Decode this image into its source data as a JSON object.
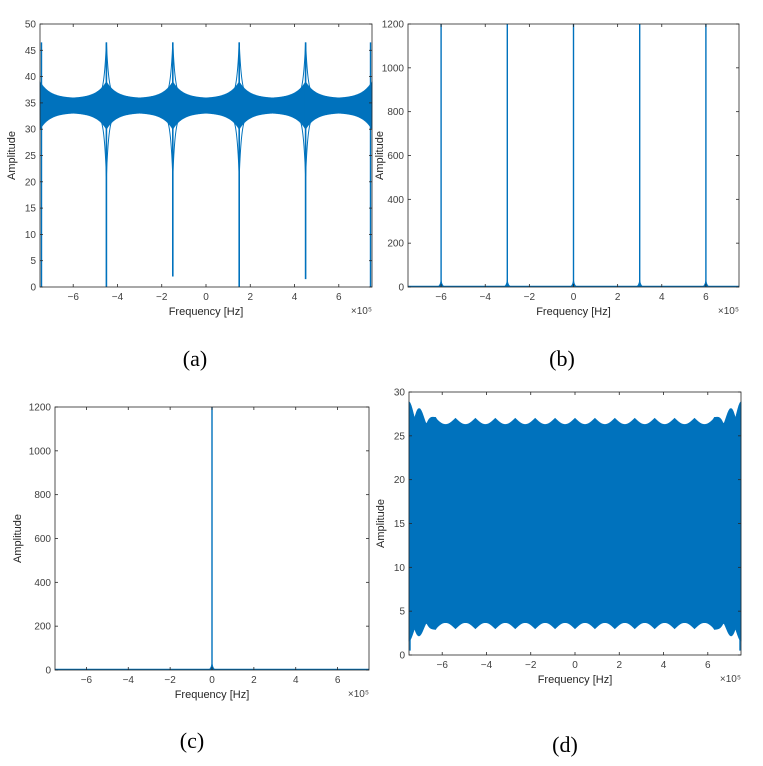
{
  "colors": {
    "line": "#0072BD",
    "axis": "#262626",
    "tick_text": "#404040"
  },
  "panel_captions": [
    "(a)",
    "(b)",
    "(c)",
    "(d)"
  ],
  "chart_data": [
    {
      "id": "a",
      "type": "line",
      "xlabel": "Frequency [Hz]",
      "ylabel": "Amplitude",
      "x_exponent": "×10⁵",
      "xlim": [
        -7.5,
        7.5
      ],
      "ylim": [
        0,
        50
      ],
      "xticks": [
        -6,
        -4,
        -2,
        0,
        2,
        4,
        6
      ],
      "yticks": [
        0,
        5,
        10,
        15,
        20,
        25,
        30,
        35,
        40,
        45,
        50
      ],
      "grid": false,
      "baseline": 34.5,
      "band": [
        33.2,
        36
      ],
      "peaks": [
        {
          "x": -4.5,
          "high": 46.5,
          "low": 0
        },
        {
          "x": -1.5,
          "high": 46.5,
          "low": 2
        },
        {
          "x": 1.5,
          "high": 46.5,
          "low": 0
        },
        {
          "x": 4.5,
          "high": 46.5,
          "low": 1.5
        }
      ],
      "edge_peaks": [
        -7.5,
        7.5
      ]
    },
    {
      "id": "b",
      "type": "line",
      "xlabel": "Frequency [Hz]",
      "ylabel": "Amplitude",
      "x_exponent": "×10⁵",
      "xlim": [
        -7.5,
        7.5
      ],
      "ylim": [
        0,
        1200
      ],
      "xticks": [
        -6,
        -4,
        -2,
        0,
        2,
        4,
        6
      ],
      "yticks": [
        0,
        200,
        400,
        600,
        800,
        1000,
        1200
      ],
      "grid": false,
      "spikes": [
        {
          "x": -6,
          "y": 1200
        },
        {
          "x": -3,
          "y": 1200
        },
        {
          "x": 0,
          "y": 1200
        },
        {
          "x": 3,
          "y": 1200
        },
        {
          "x": 6,
          "y": 1200
        }
      ]
    },
    {
      "id": "c",
      "type": "line",
      "xlabel": "Frequency [Hz]",
      "ylabel": "Amplitude",
      "x_exponent": "×10⁵",
      "xlim": [
        -7.5,
        7.5
      ],
      "ylim": [
        0,
        1200
      ],
      "xticks": [
        -6,
        -4,
        -2,
        0,
        2,
        4,
        6
      ],
      "yticks": [
        0,
        200,
        400,
        600,
        800,
        1000,
        1200
      ],
      "grid": false,
      "spikes": [
        {
          "x": 0,
          "y": 1200
        }
      ]
    },
    {
      "id": "d",
      "type": "area",
      "xlabel": "Frequency [Hz]",
      "ylabel": "Amplitude",
      "x_exponent": "×10⁵",
      "xlim": [
        -7.5,
        7.5
      ],
      "ylim": [
        0,
        30
      ],
      "xticks": [
        -6,
        -4,
        -2,
        0,
        2,
        4,
        6
      ],
      "yticks": [
        0,
        5,
        10,
        15,
        20,
        25,
        30
      ],
      "grid": false,
      "envelope_upper": 27,
      "envelope_lower": 3,
      "edge_upper": 29.5,
      "edge_lower": 1
    }
  ]
}
